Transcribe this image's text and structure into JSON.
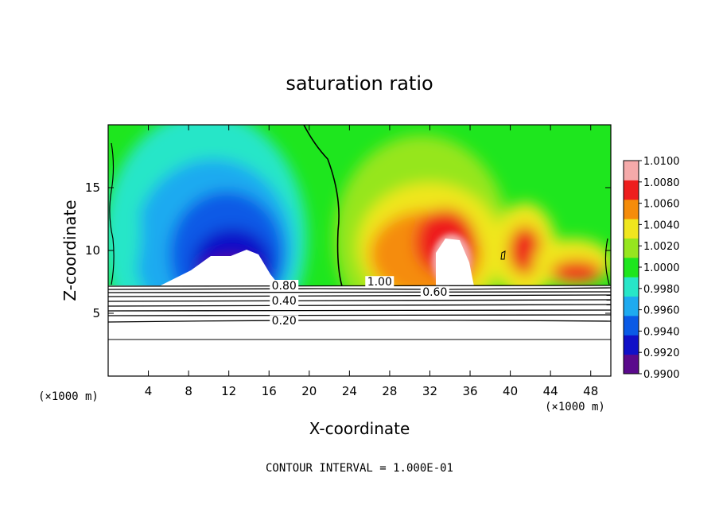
{
  "chart_data": {
    "type": "heatmap",
    "title": "saturation ratio",
    "xlabel": "X-coordinate",
    "ylabel": "Z-coordinate",
    "x_unit_left": "(×1000 m)",
    "x_unit_right": "(×1000 m)",
    "xlim": [
      0,
      50
    ],
    "ylim": [
      0,
      20
    ],
    "x_ticks": [
      4,
      8,
      12,
      16,
      20,
      24,
      28,
      32,
      36,
      40,
      44,
      48
    ],
    "y_ticks": [
      5,
      10,
      15
    ],
    "footnote": "CONTOUR INTERVAL = 1.000E-01",
    "colorbar": {
      "levels": [
        "0.9900",
        "0.9920",
        "0.9940",
        "0.9960",
        "0.9980",
        "1.0000",
        "1.0020",
        "1.0040",
        "1.0060",
        "1.0080",
        "1.0100"
      ],
      "colors": [
        "#5a0a8c",
        "#1010c8",
        "#0a5ae6",
        "#1eaaf0",
        "#28e6c8",
        "#1ee61e",
        "#96e61e",
        "#f0e61e",
        "#f58c0a",
        "#ee1e1e",
        "#f5aaaa"
      ]
    },
    "contour_labels": [
      {
        "text": "0.80",
        "x": 17.5,
        "y": 6.9
      },
      {
        "text": "0.40",
        "x": 17.5,
        "y": 5.7
      },
      {
        "text": "0.20",
        "x": 17.5,
        "y": 4.1
      },
      {
        "text": "1.00",
        "x": 27.0,
        "y": 7.2
      },
      {
        "text": "0.60",
        "x": 32.5,
        "y": 6.4
      }
    ]
  }
}
